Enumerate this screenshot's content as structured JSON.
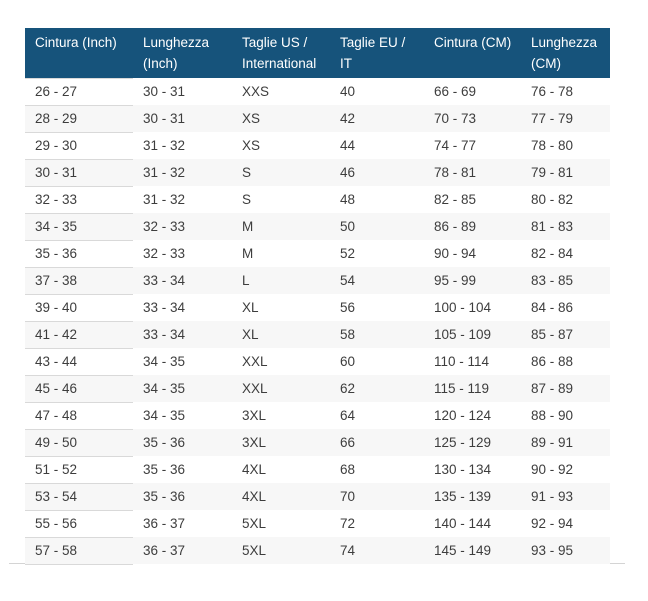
{
  "colors": {
    "header_bg": "#16537b",
    "header_text": "#ffffff",
    "body_text": "#3d3d3d",
    "stripe_bg": "#f7f7f7",
    "row_divider": "#d9d9d9",
    "bottom_rule": "#d4d4d4"
  },
  "table": {
    "columns": [
      {
        "label": "Cintura (Inch)",
        "line1": "Cintura (Inch)",
        "line2": ""
      },
      {
        "label": "Lunghezza (Inch)",
        "line1": "Lunghezza",
        "line2": "(Inch)"
      },
      {
        "label": "Taglie US / International",
        "line1": "Taglie US /",
        "line2": "International"
      },
      {
        "label": "Taglie EU / IT",
        "line1": "Taglie EU /",
        "line2": "IT"
      },
      {
        "label": "Cintura (CM)",
        "line1": "Cintura (CM)",
        "line2": ""
      },
      {
        "label": "Lunghezza (CM)",
        "line1": "Lunghezza",
        "line2": "(CM)"
      }
    ],
    "rows": [
      [
        "26 - 27",
        "30 - 31",
        "XXS",
        "40",
        "66 - 69",
        "76 - 78"
      ],
      [
        "28 - 29",
        "30 - 31",
        "XS",
        "42",
        "70 - 73",
        "77 - 79"
      ],
      [
        "29 - 30",
        "31 - 32",
        "XS",
        "44",
        "74 - 77",
        "78 - 80"
      ],
      [
        "30 - 31",
        "31 - 32",
        "S",
        "46",
        "78 - 81",
        "79 - 81"
      ],
      [
        "32 - 33",
        "31 - 32",
        "S",
        "48",
        "82 - 85",
        "80 - 82"
      ],
      [
        "34 - 35",
        "32 - 33",
        "M",
        "50",
        "86 - 89",
        "81 - 83"
      ],
      [
        "35 - 36",
        "32 - 33",
        "M",
        "52",
        "90 - 94",
        "82 - 84"
      ],
      [
        "37 - 38",
        "33 - 34",
        "L",
        "54",
        "95 - 99",
        "83 - 85"
      ],
      [
        "39 - 40",
        "33 - 34",
        "XL",
        "56",
        "100 - 104",
        "84 - 86"
      ],
      [
        "41 - 42",
        "33 - 34",
        "XL",
        "58",
        "105 - 109",
        "85 - 87"
      ],
      [
        "43 - 44",
        "34 - 35",
        "XXL",
        "60",
        "110 - 114",
        "86 - 88"
      ],
      [
        "45 - 46",
        "34 - 35",
        "XXL",
        "62",
        "115 - 119",
        "87 - 89"
      ],
      [
        "47 - 48",
        "34 - 35",
        "3XL",
        "64",
        "120 - 124",
        "88 - 90"
      ],
      [
        "49 - 50",
        "35 - 36",
        "3XL",
        "66",
        "125 - 129",
        "89 - 91"
      ],
      [
        "51 - 52",
        "35 - 36",
        "4XL",
        "68",
        "130 - 134",
        "90 - 92"
      ],
      [
        "53 - 54",
        "35 - 36",
        "4XL",
        "70",
        "135 - 139",
        "91 - 93"
      ],
      [
        "55 - 56",
        "36 - 37",
        "5XL",
        "72",
        "140 - 144",
        "92 - 94"
      ],
      [
        "57 - 58",
        "36 - 37",
        "5XL",
        "74",
        "145 - 149",
        "93 - 95"
      ]
    ]
  }
}
